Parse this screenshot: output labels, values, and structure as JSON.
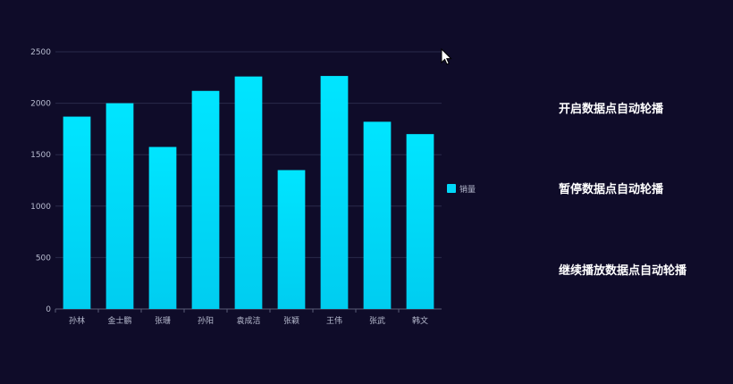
{
  "chart_data": {
    "type": "bar",
    "categories": [
      "孙林",
      "金士鹏",
      "张珊",
      "孙阳",
      "袁成洁",
      "张颖",
      "王伟",
      "张武",
      "韩文"
    ],
    "series": [
      {
        "name": "销量",
        "values": [
          1870,
          2000,
          1575,
          2120,
          2260,
          1350,
          2265,
          1820,
          1700
        ]
      }
    ],
    "y_ticks": [
      "0",
      "500",
      "1000",
      "1500",
      "2000",
      "2500"
    ],
    "ylim": [
      0,
      2500
    ],
    "grid": true,
    "legend_position": "right",
    "colors": {
      "bar_top": "#00e5ff",
      "bar_bottom": "#00cdf0",
      "grid": "#2a2a4a",
      "axis_text": "#b8bcd0"
    }
  },
  "controls": {
    "start_label": "开启数据点自动轮播",
    "pause_label": "暂停数据点自动轮播",
    "resume_label": "继续播放数据点自动轮播"
  }
}
